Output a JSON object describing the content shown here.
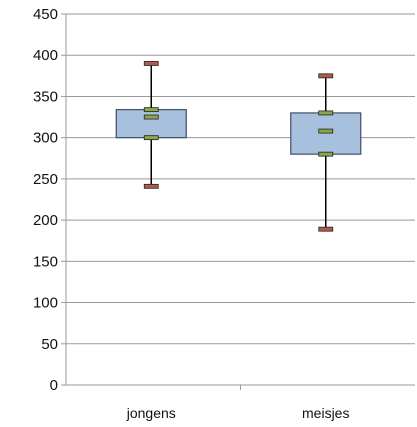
{
  "chart_data": {
    "type": "box",
    "categories": [
      "jongens",
      "meisjes"
    ],
    "boxes": [
      {
        "name": "jongens",
        "min": 241,
        "q1": 300,
        "median": 325,
        "q3": 334,
        "max": 390
      },
      {
        "name": "meisjes",
        "min": 189,
        "q1": 280,
        "median": 308,
        "q3": 330,
        "max": 375
      }
    ],
    "ylim": [
      0,
      450
    ],
    "yticks": [
      0,
      50,
      100,
      150,
      200,
      250,
      300,
      350,
      400,
      450
    ],
    "grid": true,
    "title": "",
    "xlabel": "",
    "ylabel": "",
    "colors": {
      "box_fill": "#a7c0de",
      "box_stroke": "#3f4e63",
      "gridline": "#9a9a9a",
      "whisker": "#000000",
      "max_marker": "#b05a50",
      "min_marker": "#b05a50",
      "q_marker": "#8ca64a"
    }
  }
}
